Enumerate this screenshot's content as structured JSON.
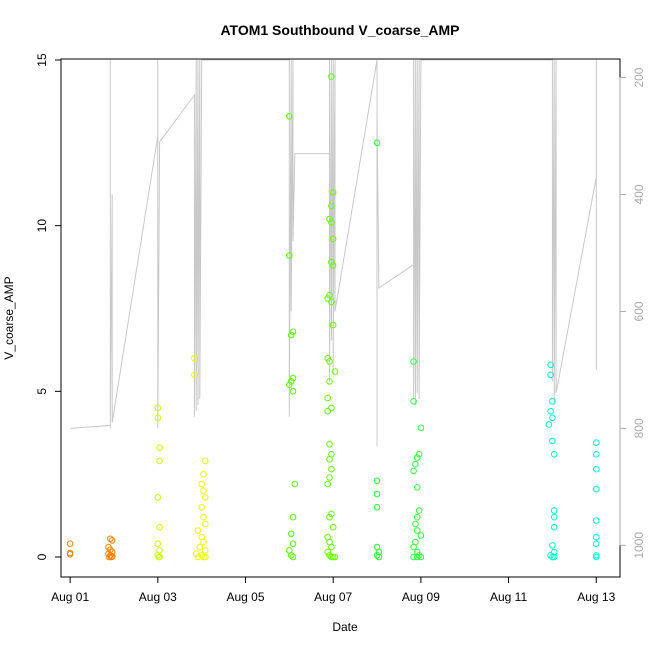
{
  "chart_data": {
    "type": "scatter",
    "title": "ATOM1 Southbound V_coarse_AMP",
    "xlabel": "Date",
    "ylabel": "V_coarse_AMP",
    "xlim": [
      "2023-07-31T19:00",
      "2023-08-13T13:00"
    ],
    "ylim": [
      0,
      15
    ],
    "y2lim": [
      1020,
      170
    ],
    "xticks": [
      {
        "date": "2023-08-01",
        "label": "Aug 01"
      },
      {
        "date": "2023-08-03",
        "label": "Aug 03"
      },
      {
        "date": "2023-08-05",
        "label": "Aug 05"
      },
      {
        "date": "2023-08-07",
        "label": "Aug 07"
      },
      {
        "date": "2023-08-09",
        "label": "Aug 09"
      },
      {
        "date": "2023-08-11",
        "label": "Aug 11"
      },
      {
        "date": "2023-08-13",
        "label": "Aug 13"
      }
    ],
    "yticks": [
      "0",
      "5",
      "10",
      "15"
    ],
    "y2ticks": [
      "200",
      "400",
      "600",
      "800",
      "1000"
    ],
    "point_series": [
      {
        "color": "#ff8000",
        "points": [
          [
            "2023-08-01T00:00",
            0.4
          ],
          [
            "2023-08-01T00:00",
            0.12
          ],
          [
            "2023-08-01T00:00",
            0.08
          ],
          [
            "2023-08-01T22:00",
            0.55
          ],
          [
            "2023-08-01T23:00",
            0.5
          ],
          [
            "2023-08-01T21:00",
            0.3
          ],
          [
            "2023-08-01T22:00",
            0.22
          ],
          [
            "2023-08-01T23:00",
            0.15
          ],
          [
            "2023-08-01T21:00",
            0.1
          ],
          [
            "2023-08-01T22:00",
            0.05
          ],
          [
            "2023-08-01T23:00",
            0.02
          ],
          [
            "2023-08-01T21:30",
            0.0
          ],
          [
            "2023-08-01T22:30",
            0.0
          ]
        ]
      },
      {
        "color": "#ccff00",
        "points": [
          [
            "2023-08-03T00:00",
            4.5
          ],
          [
            "2023-08-03T00:00",
            4.2
          ],
          [
            "2023-08-03T01:00",
            3.3
          ],
          [
            "2023-08-03T01:00",
            2.9
          ],
          [
            "2023-08-03T00:00",
            1.8
          ],
          [
            "2023-08-03T01:00",
            0.9
          ],
          [
            "2023-08-03T00:00",
            0.4
          ],
          [
            "2023-08-03T01:00",
            0.2
          ],
          [
            "2023-08-03T00:00",
            0.05
          ],
          [
            "2023-08-03T01:00",
            0.0
          ],
          [
            "2023-08-03T00:30",
            0.0
          ]
        ]
      },
      {
        "color": "#eeff00",
        "points": [
          [
            "2023-08-03T20:00",
            6.0
          ],
          [
            "2023-08-03T20:00",
            5.5
          ],
          [
            "2023-08-04T02:00",
            2.9
          ],
          [
            "2023-08-04T01:00",
            2.5
          ],
          [
            "2023-08-04T00:00",
            2.2
          ],
          [
            "2023-08-04T01:00",
            2.0
          ],
          [
            "2023-08-04T02:00",
            1.8
          ],
          [
            "2023-08-04T00:00",
            1.5
          ],
          [
            "2023-08-04T01:00",
            1.2
          ],
          [
            "2023-08-04T02:00",
            1.0
          ],
          [
            "2023-08-03T22:00",
            0.8
          ],
          [
            "2023-08-04T00:00",
            0.6
          ],
          [
            "2023-08-04T01:00",
            0.45
          ],
          [
            "2023-08-03T23:00",
            0.3
          ],
          [
            "2023-08-04T02:00",
            0.2
          ],
          [
            "2023-08-03T21:00",
            0.1
          ],
          [
            "2023-08-04T00:00",
            0.05
          ],
          [
            "2023-08-03T22:00",
            0.0
          ],
          [
            "2023-08-04T01:00",
            0.0
          ],
          [
            "2023-08-04T02:00",
            0.0
          ]
        ]
      },
      {
        "color": "#55ff00",
        "points": [
          [
            "2023-08-06T00:00",
            13.3
          ],
          [
            "2023-08-06T00:00",
            9.1
          ],
          [
            "2023-08-06T02:00",
            6.8
          ],
          [
            "2023-08-06T01:00",
            6.7
          ],
          [
            "2023-08-06T02:00",
            5.4
          ],
          [
            "2023-08-06T01:00",
            5.3
          ],
          [
            "2023-08-06T00:00",
            5.2
          ],
          [
            "2023-08-06T02:00",
            5.0
          ],
          [
            "2023-08-06T03:00",
            2.2
          ],
          [
            "2023-08-06T02:00",
            1.2
          ],
          [
            "2023-08-06T01:00",
            0.7
          ],
          [
            "2023-08-06T02:00",
            0.4
          ],
          [
            "2023-08-06T00:00",
            0.2
          ],
          [
            "2023-08-06T01:00",
            0.05
          ],
          [
            "2023-08-06T02:00",
            0.0
          ]
        ]
      },
      {
        "color": "#66ff00",
        "points": [
          [
            "2023-08-06T23:00",
            14.5
          ],
          [
            "2023-08-07T00:00",
            11.0
          ],
          [
            "2023-08-06T23:00",
            10.6
          ],
          [
            "2023-08-06T22:00",
            10.2
          ],
          [
            "2023-08-06T23:00",
            10.1
          ],
          [
            "2023-08-07T00:00",
            9.6
          ],
          [
            "2023-08-06T23:00",
            8.9
          ],
          [
            "2023-08-07T00:00",
            8.8
          ],
          [
            "2023-08-06T22:00",
            7.9
          ],
          [
            "2023-08-06T21:00",
            7.8
          ],
          [
            "2023-08-06T23:00",
            7.7
          ],
          [
            "2023-08-07T00:00",
            7.0
          ],
          [
            "2023-08-06T21:00",
            6.0
          ],
          [
            "2023-08-06T22:00",
            5.9
          ],
          [
            "2023-08-07T01:00",
            5.6
          ],
          [
            "2023-08-06T22:00",
            5.3
          ],
          [
            "2023-08-06T21:00",
            4.8
          ],
          [
            "2023-08-06T23:00",
            4.5
          ],
          [
            "2023-08-06T21:00",
            4.4
          ],
          [
            "2023-08-06T22:00",
            3.4
          ],
          [
            "2023-08-06T23:00",
            3.1
          ],
          [
            "2023-08-06T22:00",
            2.95
          ],
          [
            "2023-08-06T23:00",
            2.65
          ],
          [
            "2023-08-06T22:00",
            2.4
          ],
          [
            "2023-08-06T21:00",
            2.2
          ],
          [
            "2023-08-06T23:00",
            1.3
          ],
          [
            "2023-08-06T22:00",
            1.2
          ],
          [
            "2023-08-07T00:00",
            0.9
          ],
          [
            "2023-08-06T21:00",
            0.6
          ],
          [
            "2023-08-06T22:00",
            0.45
          ],
          [
            "2023-08-06T23:00",
            0.3
          ],
          [
            "2023-08-06T21:00",
            0.15
          ],
          [
            "2023-08-06T22:00",
            0.05
          ],
          [
            "2023-08-06T23:00",
            0.0
          ],
          [
            "2023-08-07T00:00",
            0.0
          ],
          [
            "2023-08-07T01:00",
            0.0
          ]
        ]
      },
      {
        "color": "#22ff33",
        "points": [
          [
            "2023-08-08T00:00",
            12.5
          ],
          [
            "2023-08-08T00:00",
            2.3
          ],
          [
            "2023-08-08T00:00",
            1.9
          ],
          [
            "2023-08-08T00:00",
            1.5
          ],
          [
            "2023-08-08T00:00",
            0.3
          ],
          [
            "2023-08-08T01:00",
            0.15
          ],
          [
            "2023-08-08T00:00",
            0.05
          ],
          [
            "2023-08-08T01:00",
            0.0
          ]
        ]
      },
      {
        "color": "#33ff44",
        "points": [
          [
            "2023-08-08T20:00",
            5.9
          ],
          [
            "2023-08-08T20:00",
            4.7
          ],
          [
            "2023-08-09T00:00",
            3.9
          ],
          [
            "2023-08-08T23:00",
            3.1
          ],
          [
            "2023-08-08T22:00",
            3.0
          ],
          [
            "2023-08-08T21:00",
            2.8
          ],
          [
            "2023-08-08T20:00",
            2.6
          ],
          [
            "2023-08-08T22:00",
            2.1
          ],
          [
            "2023-08-08T23:00",
            1.4
          ],
          [
            "2023-08-08T22:00",
            1.2
          ],
          [
            "2023-08-08T21:00",
            1.0
          ],
          [
            "2023-08-08T22:00",
            0.8
          ],
          [
            "2023-08-09T00:00",
            0.65
          ],
          [
            "2023-08-08T21:00",
            0.45
          ],
          [
            "2023-08-08T20:00",
            0.3
          ],
          [
            "2023-08-08T22:00",
            0.15
          ],
          [
            "2023-08-08T23:00",
            0.05
          ],
          [
            "2023-08-08T20:00",
            0.0
          ],
          [
            "2023-08-08T22:00",
            0.0
          ],
          [
            "2023-08-09T00:00",
            0.0
          ]
        ]
      },
      {
        "color": "#00ffcc",
        "points": [
          [
            "2023-08-11T23:00",
            5.8
          ],
          [
            "2023-08-11T23:00",
            5.5
          ],
          [
            "2023-08-12T00:00",
            4.7
          ],
          [
            "2023-08-11T23:00",
            4.4
          ],
          [
            "2023-08-12T00:00",
            4.2
          ],
          [
            "2023-08-11T22:00",
            4.0
          ],
          [
            "2023-08-12T00:00",
            3.5
          ],
          [
            "2023-08-12T01:00",
            3.1
          ],
          [
            "2023-08-12T01:00",
            1.4
          ],
          [
            "2023-08-12T01:00",
            1.2
          ],
          [
            "2023-08-12T01:00",
            0.9
          ],
          [
            "2023-08-12T00:00",
            0.35
          ],
          [
            "2023-08-12T01:00",
            0.15
          ],
          [
            "2023-08-11T23:00",
            0.05
          ],
          [
            "2023-08-12T00:00",
            0.0
          ],
          [
            "2023-08-12T01:00",
            0.0
          ]
        ]
      },
      {
        "color": "#00ffdd",
        "points": [
          [
            "2023-08-13T00:00",
            3.45
          ],
          [
            "2023-08-13T00:00",
            3.1
          ],
          [
            "2023-08-13T00:00",
            2.65
          ],
          [
            "2023-08-13T00:00",
            2.05
          ],
          [
            "2023-08-13T00:00",
            1.1
          ],
          [
            "2023-08-13T00:00",
            0.6
          ],
          [
            "2023-08-13T00:00",
            0.4
          ],
          [
            "2023-08-13T00:00",
            0.05
          ],
          [
            "2023-08-13T00:00",
            0.0
          ]
        ]
      }
    ],
    "trace_color": "#c8c8c8",
    "trace": [
      [
        "2023-08-01T00:00",
        800
      ],
      [
        "2023-08-01T22:00",
        795
      ],
      [
        "2023-08-01T22:00",
        170
      ],
      [
        "2023-08-01T22:00",
        800
      ],
      [
        "2023-08-01T23:00",
        400
      ],
      [
        "2023-08-01T23:00",
        790
      ],
      [
        "2023-08-03T00:00",
        300
      ],
      [
        "2023-08-03T00:00",
        170
      ],
      [
        "2023-08-03T00:00",
        800
      ],
      [
        "2023-08-03T01:00",
        310
      ],
      [
        "2023-08-03T20:00",
        230
      ],
      [
        "2023-08-03T20:00",
        780
      ],
      [
        "2023-08-03T21:00",
        170
      ],
      [
        "2023-08-03T21:00",
        770
      ],
      [
        "2023-08-03T22:00",
        170
      ],
      [
        "2023-08-03T22:00",
        760
      ],
      [
        "2023-08-03T23:00",
        170
      ],
      [
        "2023-08-03T23:00",
        750
      ],
      [
        "2023-08-04T00:00",
        170
      ],
      [
        "2023-08-05T07:00",
        170
      ],
      [
        "2023-08-06T00:00",
        170
      ],
      [
        "2023-08-06T00:00",
        780
      ],
      [
        "2023-08-06T01:00",
        170
      ],
      [
        "2023-08-06T01:00",
        600
      ],
      [
        "2023-08-06T02:00",
        170
      ],
      [
        "2023-08-06T02:00",
        480
      ],
      [
        "2023-08-06T03:00",
        330
      ],
      [
        "2023-08-06T22:00",
        330
      ],
      [
        "2023-08-06T22:00",
        170
      ],
      [
        "2023-08-06T22:00",
        720
      ],
      [
        "2023-08-06T23:00",
        170
      ],
      [
        "2023-08-06T23:00",
        650
      ],
      [
        "2023-08-07T00:00",
        170
      ],
      [
        "2023-08-07T00:00",
        700
      ],
      [
        "2023-08-07T01:00",
        170
      ],
      [
        "2023-08-07T01:00",
        600
      ],
      [
        "2023-08-08T00:00",
        170
      ],
      [
        "2023-08-08T00:00",
        830
      ],
      [
        "2023-08-08T00:00",
        260
      ],
      [
        "2023-08-08T01:00",
        560
      ],
      [
        "2023-08-08T20:00",
        520
      ],
      [
        "2023-08-08T20:00",
        170
      ],
      [
        "2023-08-08T20:00",
        750
      ],
      [
        "2023-08-08T21:00",
        170
      ],
      [
        "2023-08-08T21:00",
        760
      ],
      [
        "2023-08-08T22:00",
        170
      ],
      [
        "2023-08-08T22:00",
        740
      ],
      [
        "2023-08-08T23:00",
        170
      ],
      [
        "2023-08-08T23:00",
        750
      ],
      [
        "2023-08-09T00:00",
        170
      ],
      [
        "2023-08-12T00:00",
        170
      ],
      [
        "2023-08-12T00:00",
        720
      ],
      [
        "2023-08-12T01:00",
        170
      ],
      [
        "2023-08-12T01:00",
        760
      ],
      [
        "2023-08-12T02:00",
        170
      ],
      [
        "2023-08-12T02:00",
        740
      ],
      [
        "2023-08-13T00:00",
        370
      ],
      [
        "2023-08-13T00:00",
        170
      ],
      [
        "2023-08-13T00:00",
        700
      ]
    ]
  }
}
